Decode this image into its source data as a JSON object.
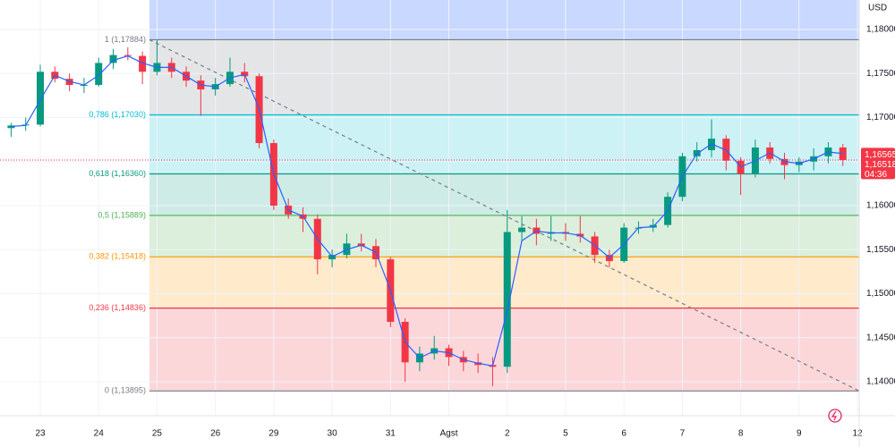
{
  "chart_data": {
    "type": "candlestick",
    "currency": "USD",
    "x": [
      -0.5,
      -0.25,
      0,
      0.25,
      0.5,
      0.75,
      1,
      1.25,
      1.5,
      1.75,
      2,
      2.25,
      2.5,
      2.75,
      3,
      3.25,
      3.5,
      3.75,
      4,
      4.25,
      4.5,
      4.75,
      5,
      5.25,
      5.5,
      5.75,
      6,
      6.25,
      6.5,
      6.75,
      7,
      7.25,
      7.5,
      7.75,
      8,
      8.25,
      8.5,
      8.75,
      9,
      9.25,
      9.5,
      9.75,
      10,
      10.25,
      10.5,
      10.75,
      11,
      11.25,
      11.5,
      11.75,
      12,
      12.25,
      12.5,
      12.75,
      13,
      13.25,
      13.5,
      13.75
    ],
    "open": [
      1.1688,
      1.1691,
      1.1692,
      1.1752,
      1.1744,
      1.1737,
      1.1737,
      1.1762,
      1.1771,
      1.177,
      1.1752,
      1.1762,
      1.1752,
      1.1742,
      1.1732,
      1.1738,
      1.1752,
      1.1747,
      1.1671,
      1.16,
      1.159,
      1.1585,
      1.1539,
      1.1544,
      1.1557,
      1.1554,
      1.1539,
      1.1468,
      1.1422,
      1.1432,
      1.1438,
      1.1428,
      1.1422,
      1.1419,
      1.1417,
      1.157,
      1.1575,
      1.1568,
      1.157,
      1.1568,
      1.1565,
      1.1544,
      1.1537,
      1.1575,
      1.1575,
      1.1578,
      1.161,
      1.1656,
      1.1663,
      1.1676,
      1.1651,
      1.1636,
      1.1666,
      1.1653,
      1.1646,
      1.165,
      1.1656,
      1.1666
    ],
    "high": [
      1.1694,
      1.17,
      1.176,
      1.1758,
      1.175,
      1.1745,
      1.1768,
      1.1778,
      1.178,
      1.1775,
      1.1788,
      1.1768,
      1.1758,
      1.1748,
      1.1745,
      1.1768,
      1.1762,
      1.175,
      1.1675,
      1.1608,
      1.1598,
      1.159,
      1.155,
      1.1568,
      1.1568,
      1.1562,
      1.1542,
      1.1472,
      1.144,
      1.1452,
      1.1442,
      1.1435,
      1.1432,
      1.1428,
      1.1595,
      1.1588,
      1.1585,
      1.1588,
      1.158,
      1.1588,
      1.157,
      1.155,
      1.158,
      1.1582,
      1.1585,
      1.1615,
      1.166,
      1.1672,
      1.1698,
      1.168,
      1.1655,
      1.1675,
      1.1672,
      1.166,
      1.1655,
      1.1665,
      1.1672,
      1.167
    ],
    "low": [
      1.1678,
      1.1685,
      1.169,
      1.174,
      1.173,
      1.1728,
      1.1735,
      1.1755,
      1.1765,
      1.1738,
      1.1748,
      1.1745,
      1.1735,
      1.1702,
      1.1725,
      1.1735,
      1.174,
      1.1665,
      1.1595,
      1.1585,
      1.157,
      1.1522,
      1.153,
      1.154,
      1.1548,
      1.153,
      1.1462,
      1.14,
      1.1412,
      1.1425,
      1.1418,
      1.1412,
      1.141,
      1.1395,
      1.141,
      1.156,
      1.1555,
      1.156,
      1.156,
      1.1558,
      1.1535,
      1.153,
      1.1535,
      1.1568,
      1.157,
      1.1575,
      1.1605,
      1.165,
      1.1655,
      1.164,
      1.1612,
      1.1632,
      1.1648,
      1.163,
      1.1638,
      1.164,
      1.1648,
      1.1645
    ],
    "close": [
      1.1691,
      1.1692,
      1.1752,
      1.1744,
      1.1737,
      1.1737,
      1.1762,
      1.1771,
      1.177,
      1.1752,
      1.1762,
      1.1752,
      1.1742,
      1.1732,
      1.1738,
      1.1752,
      1.1747,
      1.1671,
      1.16,
      1.159,
      1.1585,
      1.1539,
      1.1544,
      1.1557,
      1.1554,
      1.1539,
      1.1468,
      1.1422,
      1.1432,
      1.1438,
      1.1428,
      1.1422,
      1.1419,
      1.1417,
      1.157,
      1.1575,
      1.1568,
      1.157,
      1.1568,
      1.1565,
      1.1544,
      1.1537,
      1.1575,
      1.1575,
      1.1578,
      1.161,
      1.1656,
      1.1663,
      1.1676,
      1.1651,
      1.1636,
      1.1666,
      1.1653,
      1.1646,
      1.165,
      1.1656,
      1.1666,
      1.16518
    ],
    "ma": [
      1.169,
      1.1691,
      1.172,
      1.1748,
      1.1741,
      1.1737,
      1.1748,
      1.1765,
      1.177,
      1.1762,
      1.1757,
      1.1757,
      1.1747,
      1.1737,
      1.1735,
      1.1745,
      1.1749,
      1.171,
      1.1636,
      1.1595,
      1.1588,
      1.1562,
      1.1542,
      1.155,
      1.1555,
      1.1547,
      1.1504,
      1.1445,
      1.1427,
      1.1435,
      1.1433,
      1.1425,
      1.1421,
      1.1418,
      1.148,
      1.156,
      1.1571,
      1.1569,
      1.1569,
      1.1566,
      1.1555,
      1.1541,
      1.1556,
      1.1575,
      1.1576,
      1.1594,
      1.1633,
      1.1659,
      1.167,
      1.1663,
      1.1644,
      1.1651,
      1.166,
      1.165,
      1.1648,
      1.1653,
      1.1661,
      1.1659
    ],
    "up_color": "#089981",
    "down_color": "#f23645",
    "ma_color": "#2962ff",
    "xlim": [
      -0.69,
      14.03
    ],
    "ylim": [
      1.13614,
      1.18335
    ],
    "xticks": [
      {
        "value": 0,
        "label": "23"
      },
      {
        "value": 1,
        "label": "24"
      },
      {
        "value": 2,
        "label": "25"
      },
      {
        "value": 3,
        "label": "26"
      },
      {
        "value": 4,
        "label": "29"
      },
      {
        "value": 5,
        "label": "30"
      },
      {
        "value": 6,
        "label": "31"
      },
      {
        "value": 7,
        "label": "Agst"
      },
      {
        "value": 8,
        "label": "2"
      },
      {
        "value": 9,
        "label": "5"
      },
      {
        "value": 10,
        "label": "6"
      },
      {
        "value": 11,
        "label": "7"
      },
      {
        "value": 12,
        "label": "8"
      },
      {
        "value": 13,
        "label": "9"
      },
      {
        "value": 14,
        "label": "12"
      }
    ],
    "yticks": [
      {
        "value": 1.18,
        "label": "1,18000"
      },
      {
        "value": 1.175,
        "label": "1,17500"
      },
      {
        "value": 1.17,
        "label": "1,17000"
      },
      {
        "value": 1.165,
        "label": "1,16500"
      },
      {
        "value": 1.16,
        "label": "1,16000"
      },
      {
        "value": 1.155,
        "label": "1,15500"
      },
      {
        "value": 1.15,
        "label": "1,15000"
      },
      {
        "value": 1.145,
        "label": "1,14500"
      },
      {
        "value": 1.14,
        "label": "1,14000"
      }
    ],
    "grid": true,
    "fib_above_color": "#2962ff",
    "fib_levels": [
      {
        "value": 1.17884,
        "label": "1 (1,17884)",
        "color": "#787b86"
      },
      {
        "value": 1.1703,
        "label": "0,786 (1,17030)",
        "color": "#00bcd4"
      },
      {
        "value": 1.1636,
        "label": "0,618 (1,16360)",
        "color": "#089981"
      },
      {
        "value": 1.15889,
        "label": "0,5 (1,15889)",
        "color": "#4caf50"
      },
      {
        "value": 1.15418,
        "label": "0,382 (1,15418)",
        "color": "#ff9800"
      },
      {
        "value": 1.14836,
        "label": "0,236 (1,14836)",
        "color": "#f23645"
      },
      {
        "value": 1.13895,
        "label": "0 (1,13895)",
        "color": "#787b86"
      }
    ],
    "trendline": {
      "x": [
        1.87,
        14.03
      ],
      "y": [
        1.17884,
        1.13895
      ]
    },
    "price_labels": [
      {
        "value": 1.16565,
        "label": "1,16565"
      },
      {
        "value": 1.16518,
        "label": "1,16518"
      }
    ],
    "countdown": "04:36"
  }
}
